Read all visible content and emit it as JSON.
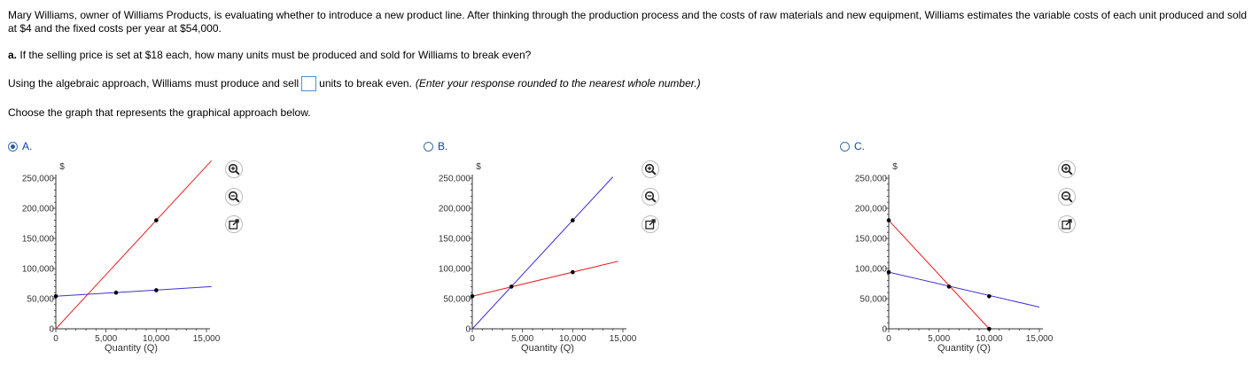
{
  "problem": {
    "intro": "Mary Williams, owner of Williams Products, is evaluating whether to introduce a new product line. After thinking through the production process and the costs of raw materials and new equipment, Williams estimates the variable costs of each unit produced and sold at $4 and the fixed costs per year at $54,000.",
    "part_label": "a.",
    "part_text": "If the selling price is set at $18 each, how many units must be produced and sold for Williams to break even?",
    "algebra_before": "Using the algebraic approach, Williams must produce and sell",
    "algebra_after": "units to break even.",
    "algebra_hint": "(Enter your response rounded to the nearest whole number.)",
    "answer_value": "",
    "instructions": "Choose the graph that represents the graphical approach below."
  },
  "options": [
    {
      "letter": "A.",
      "selected": true
    },
    {
      "letter": "B.",
      "selected": false
    },
    {
      "letter": "C.",
      "selected": false
    }
  ],
  "tools": [
    "zoom-in-icon",
    "zoom-out-icon",
    "open-external-icon"
  ],
  "colors": {
    "red": "#e8201f",
    "blue": "#3f2fd6",
    "option_text": "#0d47a1"
  },
  "chart_data": [
    {
      "type": "line",
      "ylabel": "$",
      "xlabel": "Quantity (Q)",
      "xticks": [
        "0",
        "5,000",
        "10,000",
        "15,000"
      ],
      "yticks": [
        "0",
        "50,000",
        "100,000",
        "150,000",
        "200,000",
        "250,000"
      ],
      "xlim": [
        0,
        15000
      ],
      "ylim": [
        0,
        250000
      ],
      "series": [
        {
          "color": "red",
          "points": [
            [
              0,
              0
            ],
            [
              15500,
              279000
            ]
          ],
          "markers": [
            [
              10000,
              180000
            ]
          ]
        },
        {
          "color": "blue",
          "points": [
            [
              0,
              54000
            ],
            [
              15500,
              70000
            ]
          ],
          "markers": [
            [
              0,
              54000
            ],
            [
              6000,
              60000
            ],
            [
              10000,
              64000
            ]
          ]
        }
      ]
    },
    {
      "type": "line",
      "ylabel": "$",
      "xlabel": "Quantity (Q)",
      "xticks": [
        "0",
        "5,000",
        "10,000",
        "15,000"
      ],
      "yticks": [
        "0",
        "50,000",
        "100,000",
        "150,000",
        "200,000",
        "250,000"
      ],
      "xlim": [
        0,
        15000
      ],
      "ylim": [
        0,
        250000
      ],
      "series": [
        {
          "color": "blue",
          "points": [
            [
              0,
              0
            ],
            [
              14000,
              252000
            ]
          ],
          "markers": [
            [
              10000,
              180000
            ]
          ]
        },
        {
          "color": "red",
          "points": [
            [
              0,
              54000
            ],
            [
              14500,
              112000
            ]
          ],
          "markers": [
            [
              0,
              54000
            ],
            [
              3900,
              70000
            ],
            [
              10000,
              94000
            ]
          ]
        }
      ]
    },
    {
      "type": "line",
      "ylabel": "$",
      "xlabel": "Quantity (Q)",
      "xticks": [
        "0",
        "5,000",
        "10,000",
        "15,000"
      ],
      "yticks": [
        "0",
        "50,000",
        "100,000",
        "150,000",
        "200,000",
        "250,000"
      ],
      "xlim": [
        0,
        15000
      ],
      "ylim": [
        0,
        250000
      ],
      "series": [
        {
          "color": "red",
          "points": [
            [
              0,
              180000
            ],
            [
              10000,
              0
            ]
          ],
          "markers": [
            [
              0,
              180000
            ],
            [
              10000,
              0
            ]
          ]
        },
        {
          "color": "blue",
          "points": [
            [
              0,
              94000
            ],
            [
              15000,
              36000
            ]
          ],
          "markers": [
            [
              0,
              94000
            ],
            [
              6000,
              70000
            ],
            [
              10000,
              54000
            ]
          ]
        }
      ]
    }
  ]
}
